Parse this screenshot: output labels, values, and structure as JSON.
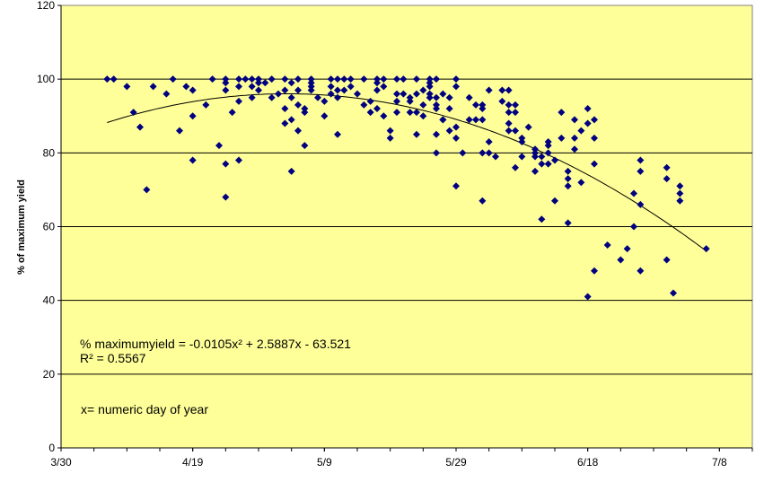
{
  "chart_data": {
    "type": "scatter",
    "ylabel": "% of maximum yield",
    "xlabel": "",
    "ylim": [
      0,
      120
    ],
    "xlim": [
      89,
      194
    ],
    "y_ticks": [
      0,
      20,
      40,
      60,
      80,
      100,
      120
    ],
    "x_ticks": [
      {
        "value": 89,
        "label": "3/30"
      },
      {
        "value": 109,
        "label": "4/19"
      },
      {
        "value": 129,
        "label": "5/9"
      },
      {
        "value": 149,
        "label": "5/29"
      },
      {
        "value": 169,
        "label": "6/18"
      },
      {
        "value": 189,
        "label": "7/8"
      }
    ],
    "grid": "horizontal",
    "background": "#ffff99",
    "marker_color": "#000080",
    "trendline": {
      "type": "polynomial",
      "a": -0.0105,
      "b": 2.5887,
      "c": -63.521,
      "x_range": [
        96,
        187
      ]
    },
    "annotations": {
      "equation": "% maximumyield =   -0.0105x² + 2.5887x - 63.521",
      "r_squared": "R² = 0.5567",
      "x_definition": "x=  numeric day of year"
    },
    "points": [
      [
        96,
        100
      ],
      [
        97,
        100
      ],
      [
        99,
        98
      ],
      [
        100,
        91
      ],
      [
        101,
        87
      ],
      [
        102,
        70
      ],
      [
        103,
        98
      ],
      [
        105,
        96
      ],
      [
        106,
        100
      ],
      [
        107,
        86
      ],
      [
        108,
        98
      ],
      [
        109,
        97
      ],
      [
        109,
        90
      ],
      [
        109,
        78
      ],
      [
        111,
        93
      ],
      [
        112,
        100
      ],
      [
        113,
        82
      ],
      [
        114,
        77
      ],
      [
        114,
        68
      ],
      [
        114,
        97
      ],
      [
        114,
        99
      ],
      [
        114,
        100
      ],
      [
        115,
        91
      ],
      [
        116,
        94
      ],
      [
        116,
        98
      ],
      [
        116,
        100
      ],
      [
        116,
        78
      ],
      [
        117,
        100
      ],
      [
        118,
        98
      ],
      [
        118,
        100
      ],
      [
        118,
        95
      ],
      [
        119,
        97
      ],
      [
        119,
        100
      ],
      [
        119,
        99
      ],
      [
        120,
        99
      ],
      [
        121,
        100
      ],
      [
        121,
        95
      ],
      [
        122,
        96
      ],
      [
        123,
        92
      ],
      [
        123,
        88
      ],
      [
        123,
        97
      ],
      [
        123,
        100
      ],
      [
        124,
        95
      ],
      [
        124,
        89
      ],
      [
        124,
        75
      ],
      [
        124,
        99
      ],
      [
        125,
        97
      ],
      [
        125,
        100
      ],
      [
        125,
        86
      ],
      [
        125,
        93
      ],
      [
        126,
        82
      ],
      [
        126,
        91
      ],
      [
        126,
        92
      ],
      [
        127,
        98
      ],
      [
        127,
        99
      ],
      [
        127,
        97
      ],
      [
        127,
        100
      ],
      [
        128,
        95
      ],
      [
        129,
        90
      ],
      [
        129,
        94
      ],
      [
        130,
        100
      ],
      [
        130,
        98
      ],
      [
        130,
        96
      ],
      [
        131,
        85
      ],
      [
        131,
        95
      ],
      [
        131,
        97
      ],
      [
        131,
        100
      ],
      [
        132,
        97
      ],
      [
        132,
        100
      ],
      [
        133,
        98
      ],
      [
        133,
        100
      ],
      [
        134,
        96
      ],
      [
        135,
        100
      ],
      [
        135,
        93
      ],
      [
        136,
        94
      ],
      [
        136,
        91
      ],
      [
        137,
        92
      ],
      [
        137,
        97
      ],
      [
        137,
        99
      ],
      [
        137,
        100
      ],
      [
        138,
        90
      ],
      [
        138,
        98
      ],
      [
        138,
        100
      ],
      [
        139,
        86
      ],
      [
        139,
        84
      ],
      [
        140,
        96
      ],
      [
        140,
        94
      ],
      [
        140,
        91
      ],
      [
        140,
        100
      ],
      [
        141,
        96
      ],
      [
        141,
        100
      ],
      [
        142,
        91
      ],
      [
        142,
        94
      ],
      [
        142,
        95
      ],
      [
        143,
        100
      ],
      [
        143,
        85
      ],
      [
        143,
        91
      ],
      [
        143,
        96
      ],
      [
        144,
        97
      ],
      [
        144,
        93
      ],
      [
        144,
        90
      ],
      [
        145,
        98
      ],
      [
        145,
        96
      ],
      [
        145,
        99
      ],
      [
        145,
        100
      ],
      [
        145,
        95
      ],
      [
        146,
        95
      ],
      [
        146,
        92
      ],
      [
        146,
        85
      ],
      [
        146,
        93
      ],
      [
        146,
        80
      ],
      [
        146,
        100
      ],
      [
        147,
        89
      ],
      [
        147,
        89
      ],
      [
        147,
        96
      ],
      [
        148,
        92
      ],
      [
        148,
        86
      ],
      [
        148,
        95
      ],
      [
        149,
        87
      ],
      [
        149,
        98
      ],
      [
        149,
        100
      ],
      [
        149,
        84
      ],
      [
        149,
        71
      ],
      [
        150,
        80
      ],
      [
        151,
        95
      ],
      [
        151,
        89
      ],
      [
        152,
        89
      ],
      [
        152,
        93
      ],
      [
        153,
        93
      ],
      [
        153,
        92
      ],
      [
        153,
        89
      ],
      [
        153,
        67
      ],
      [
        153,
        80
      ],
      [
        154,
        80
      ],
      [
        154,
        83
      ],
      [
        154,
        97
      ],
      [
        155,
        79
      ],
      [
        156,
        97
      ],
      [
        156,
        94
      ],
      [
        157,
        93
      ],
      [
        157,
        88
      ],
      [
        157,
        86
      ],
      [
        157,
        91
      ],
      [
        157,
        97
      ],
      [
        158,
        91
      ],
      [
        158,
        93
      ],
      [
        158,
        86
      ],
      [
        158,
        76
      ],
      [
        159,
        84
      ],
      [
        159,
        83
      ],
      [
        159,
        79
      ],
      [
        160,
        87
      ],
      [
        161,
        75
      ],
      [
        161,
        79
      ],
      [
        161,
        81
      ],
      [
        161,
        80
      ],
      [
        162,
        79
      ],
      [
        162,
        62
      ],
      [
        162,
        77
      ],
      [
        163,
        83
      ],
      [
        163,
        82
      ],
      [
        163,
        80
      ],
      [
        163,
        77
      ],
      [
        164,
        67
      ],
      [
        164,
        78
      ],
      [
        165,
        84
      ],
      [
        165,
        91
      ],
      [
        166,
        61
      ],
      [
        166,
        75
      ],
      [
        166,
        73
      ],
      [
        166,
        71
      ],
      [
        167,
        89
      ],
      [
        167,
        84
      ],
      [
        167,
        81
      ],
      [
        168,
        72
      ],
      [
        168,
        86
      ],
      [
        169,
        92
      ],
      [
        169,
        88
      ],
      [
        169,
        41
      ],
      [
        170,
        77
      ],
      [
        170,
        84
      ],
      [
        170,
        89
      ],
      [
        170,
        48
      ],
      [
        172,
        55
      ],
      [
        174,
        51
      ],
      [
        175,
        54
      ],
      [
        176,
        69
      ],
      [
        176,
        60
      ],
      [
        177,
        78
      ],
      [
        177,
        75
      ],
      [
        177,
        66
      ],
      [
        177,
        48
      ],
      [
        181,
        76
      ],
      [
        181,
        73
      ],
      [
        181,
        51
      ],
      [
        182,
        42
      ],
      [
        183,
        71
      ],
      [
        183,
        69
      ],
      [
        183,
        67
      ],
      [
        187,
        54
      ]
    ]
  }
}
